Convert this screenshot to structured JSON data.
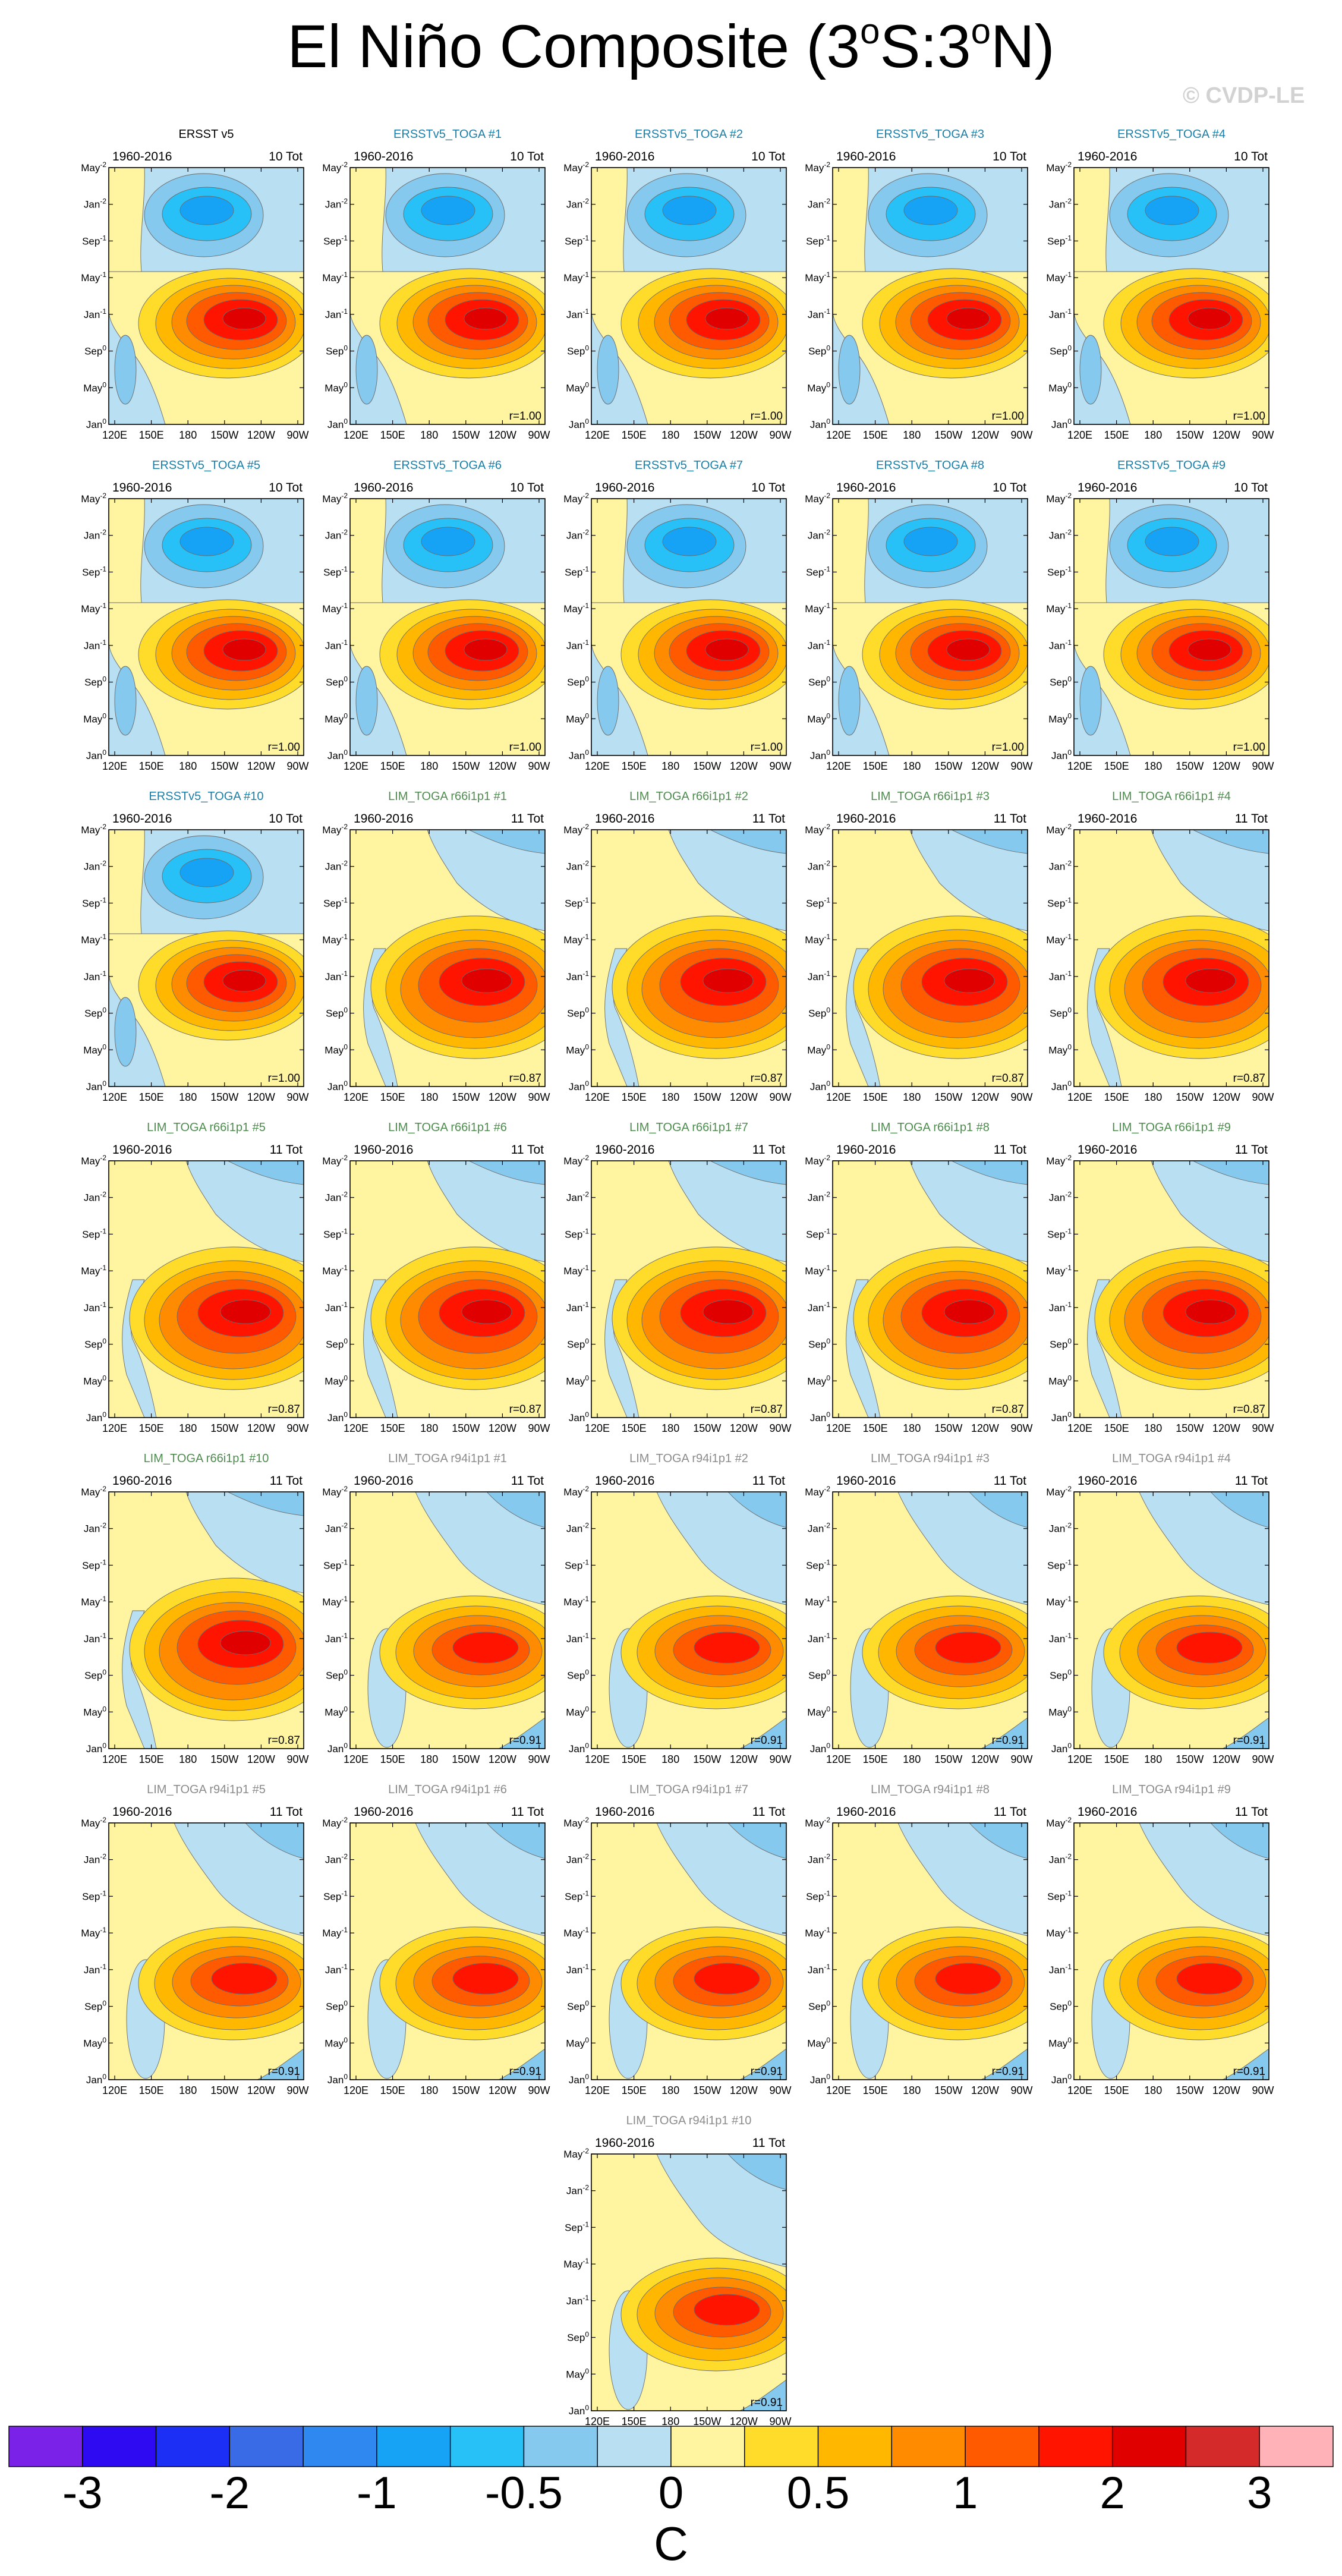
{
  "title": {
    "prefix": "El Niño Composite (3",
    "deg1": "o",
    "mid": "S:3",
    "deg2": "o",
    "suffix": "N)"
  },
  "watermark": "© CVDP-LE",
  "chart_data": {
    "type": "heatmap",
    "description_axes": {
      "x_ticks": [
        "120E",
        "150E",
        "180",
        "150W",
        "120W",
        "90W"
      ],
      "y_ticks": [
        "Jan",
        "May",
        "Sep",
        "Jan",
        "May",
        "Sep",
        "Jan",
        "May"
      ],
      "y_sups": [
        "0",
        "0",
        "0",
        "-1",
        "-1",
        "-1",
        "-2",
        "-2"
      ]
    },
    "period": "1960-2016",
    "panels": [
      {
        "title": "ERSST v5",
        "color": "#000000",
        "tot": "10 Tot",
        "r": "",
        "type": "obs"
      },
      {
        "title": "ERSSTv5_TOGA #1",
        "color": "#1a7fa8",
        "tot": "10 Tot",
        "r": "r=1.00",
        "type": "obs"
      },
      {
        "title": "ERSSTv5_TOGA #2",
        "color": "#1a7fa8",
        "tot": "10 Tot",
        "r": "r=1.00",
        "type": "obs"
      },
      {
        "title": "ERSSTv5_TOGA #3",
        "color": "#1a7fa8",
        "tot": "10 Tot",
        "r": "r=1.00",
        "type": "obs"
      },
      {
        "title": "ERSSTv5_TOGA #4",
        "color": "#1a7fa8",
        "tot": "10 Tot",
        "r": "r=1.00",
        "type": "obs"
      },
      {
        "title": "ERSSTv5_TOGA #5",
        "color": "#1a7fa8",
        "tot": "10 Tot",
        "r": "r=1.00",
        "type": "obs"
      },
      {
        "title": "ERSSTv5_TOGA #6",
        "color": "#1a7fa8",
        "tot": "10 Tot",
        "r": "r=1.00",
        "type": "obs"
      },
      {
        "title": "ERSSTv5_TOGA #7",
        "color": "#1a7fa8",
        "tot": "10 Tot",
        "r": "r=1.00",
        "type": "obs"
      },
      {
        "title": "ERSSTv5_TOGA #8",
        "color": "#1a7fa8",
        "tot": "10 Tot",
        "r": "r=1.00",
        "type": "obs"
      },
      {
        "title": "ERSSTv5_TOGA #9",
        "color": "#1a7fa8",
        "tot": "10 Tot",
        "r": "r=1.00",
        "type": "obs"
      },
      {
        "title": "ERSSTv5_TOGA #10",
        "color": "#1a7fa8",
        "tot": "10 Tot",
        "r": "r=1.00",
        "type": "obs"
      },
      {
        "title": "LIM_TOGA r66i1p1 #1",
        "color": "#4f8c4f",
        "tot": "11 Tot",
        "r": "r=0.87",
        "type": "r66"
      },
      {
        "title": "LIM_TOGA r66i1p1 #2",
        "color": "#4f8c4f",
        "tot": "11 Tot",
        "r": "r=0.87",
        "type": "r66"
      },
      {
        "title": "LIM_TOGA r66i1p1 #3",
        "color": "#4f8c4f",
        "tot": "11 Tot",
        "r": "r=0.87",
        "type": "r66"
      },
      {
        "title": "LIM_TOGA r66i1p1 #4",
        "color": "#4f8c4f",
        "tot": "11 Tot",
        "r": "r=0.87",
        "type": "r66"
      },
      {
        "title": "LIM_TOGA r66i1p1 #5",
        "color": "#4f8c4f",
        "tot": "11 Tot",
        "r": "r=0.87",
        "type": "r66"
      },
      {
        "title": "LIM_TOGA r66i1p1 #6",
        "color": "#4f8c4f",
        "tot": "11 Tot",
        "r": "r=0.87",
        "type": "r66"
      },
      {
        "title": "LIM_TOGA r66i1p1 #7",
        "color": "#4f8c4f",
        "tot": "11 Tot",
        "r": "r=0.87",
        "type": "r66"
      },
      {
        "title": "LIM_TOGA r66i1p1 #8",
        "color": "#4f8c4f",
        "tot": "11 Tot",
        "r": "r=0.87",
        "type": "r66"
      },
      {
        "title": "LIM_TOGA r66i1p1 #9",
        "color": "#4f8c4f",
        "tot": "11 Tot",
        "r": "r=0.87",
        "type": "r66"
      },
      {
        "title": "LIM_TOGA r66i1p1 #10",
        "color": "#4f8c4f",
        "tot": "11 Tot",
        "r": "r=0.87",
        "type": "r66"
      },
      {
        "title": "LIM_TOGA r94i1p1 #1",
        "color": "#8c8c8c",
        "tot": "11 Tot",
        "r": "r=0.91",
        "type": "r94"
      },
      {
        "title": "LIM_TOGA r94i1p1 #2",
        "color": "#8c8c8c",
        "tot": "11 Tot",
        "r": "r=0.91",
        "type": "r94"
      },
      {
        "title": "LIM_TOGA r94i1p1 #3",
        "color": "#8c8c8c",
        "tot": "11 Tot",
        "r": "r=0.91",
        "type": "r94"
      },
      {
        "title": "LIM_TOGA r94i1p1 #4",
        "color": "#8c8c8c",
        "tot": "11 Tot",
        "r": "r=0.91",
        "type": "r94"
      },
      {
        "title": "LIM_TOGA r94i1p1 #5",
        "color": "#8c8c8c",
        "tot": "11 Tot",
        "r": "r=0.91",
        "type": "r94"
      },
      {
        "title": "LIM_TOGA r94i1p1 #6",
        "color": "#8c8c8c",
        "tot": "11 Tot",
        "r": "r=0.91",
        "type": "r94"
      },
      {
        "title": "LIM_TOGA r94i1p1 #7",
        "color": "#8c8c8c",
        "tot": "11 Tot",
        "r": "r=0.91",
        "type": "r94"
      },
      {
        "title": "LIM_TOGA r94i1p1 #8",
        "color": "#8c8c8c",
        "tot": "11 Tot",
        "r": "r=0.91",
        "type": "r94"
      },
      {
        "title": "LIM_TOGA r94i1p1 #9",
        "color": "#8c8c8c",
        "tot": "11 Tot",
        "r": "r=0.91",
        "type": "r94"
      },
      {
        "title": "LIM_TOGA r94i1p1 #10",
        "color": "#8c8c8c",
        "tot": "11 Tot",
        "r": "r=0.91",
        "type": "r94"
      }
    ],
    "colorbar": {
      "colors": [
        "#7a22e8",
        "#2e0af2",
        "#1c2ff5",
        "#3a6be6",
        "#2f88f0",
        "#16a3f5",
        "#27c0f7",
        "#86c9ee",
        "#b9e0f2",
        "#fff5a0",
        "#ffdc2a",
        "#ffb700",
        "#ff8c00",
        "#ff5a00",
        "#ff1400",
        "#e00000",
        "#d42a2a",
        "#ffb3b8"
      ],
      "tick_labels": [
        "-3",
        "-2",
        "-1",
        "-0.5",
        "0",
        "0.5",
        "1",
        "2",
        "3"
      ],
      "units": "C"
    }
  }
}
